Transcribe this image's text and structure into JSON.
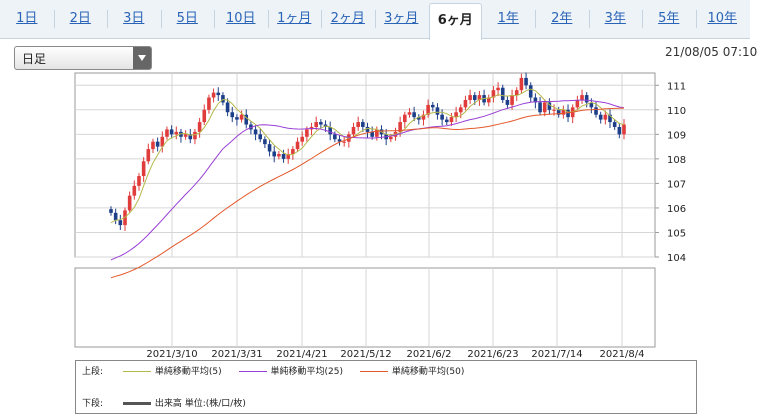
{
  "tabs": [
    {
      "label": "1日",
      "active": false
    },
    {
      "label": "2日",
      "active": false
    },
    {
      "label": "3日",
      "active": false
    },
    {
      "label": "5日",
      "active": false
    },
    {
      "label": "10日",
      "active": false
    },
    {
      "label": "1ヶ月",
      "active": false
    },
    {
      "label": "2ヶ月",
      "active": false
    },
    {
      "label": "3ヶ月",
      "active": false
    },
    {
      "label": "6ヶ月",
      "active": true
    },
    {
      "label": "1年",
      "active": false
    },
    {
      "label": "2年",
      "active": false
    },
    {
      "label": "3年",
      "active": false
    },
    {
      "label": "5年",
      "active": false
    },
    {
      "label": "10年",
      "active": false
    }
  ],
  "period_select": {
    "value": "日足"
  },
  "timestamp": "21/08/05 07:10",
  "legend": {
    "upper_label": "上段:",
    "lower_label": "下段:",
    "ma5": "単純移動平均(5)",
    "ma25": "単純移動平均(25)",
    "ma50": "単純移動平均(50)",
    "volume": "出来高 単位:(株/口/枚)"
  },
  "colors": {
    "up": "#e03c3c",
    "down": "#1d3f8a",
    "ma5": "#b5b84a",
    "ma25": "#9a3fd6",
    "ma50": "#e4582a",
    "grid": "#d6d6d6",
    "tab_link": "#2a64b6"
  },
  "chart_data": {
    "type": "candlestick",
    "ylim": [
      104,
      111.5
    ],
    "yticks": [
      104,
      105,
      106,
      107,
      108,
      109,
      110,
      111
    ],
    "xticks": [
      "2021/3/10",
      "2021/3/31",
      "2021/4/21",
      "2021/5/12",
      "2021/6/2",
      "2021/6/23",
      "2021/7/14",
      "2021/8/4"
    ],
    "closes": [
      105.8,
      105.5,
      105.3,
      105.9,
      106.5,
      106.9,
      107.3,
      107.9,
      108.4,
      108.7,
      108.5,
      108.9,
      109.2,
      109.0,
      109.1,
      108.9,
      109.0,
      108.8,
      109.1,
      109.5,
      110.0,
      110.5,
      110.7,
      110.6,
      110.3,
      109.9,
      109.7,
      109.6,
      109.8,
      109.4,
      109.2,
      109.0,
      108.8,
      108.6,
      108.3,
      108.1,
      108.2,
      108.0,
      108.2,
      108.4,
      108.7,
      108.9,
      109.2,
      109.3,
      109.5,
      109.4,
      109.3,
      109.0,
      108.8,
      108.7,
      108.7,
      109.0,
      109.3,
      109.5,
      109.3,
      109.1,
      108.9,
      109.2,
      109.0,
      108.8,
      108.9,
      109.1,
      109.5,
      109.8,
      109.9,
      109.7,
      109.6,
      109.8,
      110.2,
      110.1,
      109.8,
      109.6,
      109.5,
      109.7,
      109.9,
      110.1,
      110.4,
      110.6,
      110.4,
      110.6,
      110.3,
      110.5,
      110.8,
      110.9,
      110.4,
      110.2,
      110.6,
      110.8,
      111.3,
      111.0,
      110.5,
      110.3,
      109.9,
      110.3,
      110.0,
      110.0,
      109.8,
      110.0,
      109.7,
      110.1,
      110.4,
      110.6,
      110.3,
      110.1,
      109.8,
      109.6,
      109.8,
      109.5,
      109.3,
      109.0,
      109.4
    ]
  }
}
